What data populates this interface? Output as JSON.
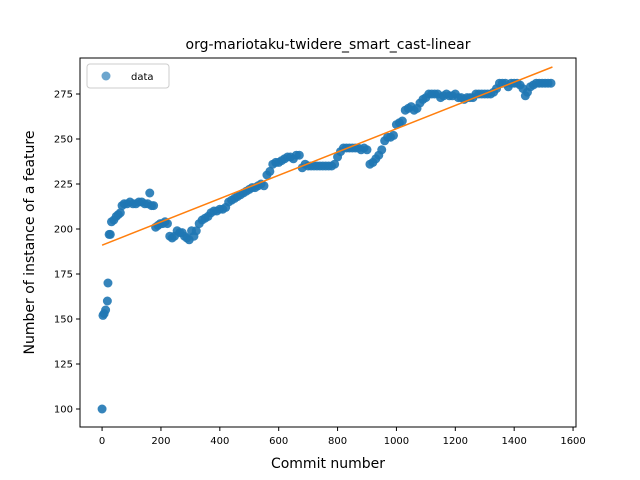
{
  "chart_data": {
    "type": "scatter",
    "title": "org-mariotaku-twidere_smart_cast-linear",
    "xlabel": "Commit number",
    "ylabel": "Number of instance of a feature",
    "xlim": [
      -75,
      1610
    ],
    "ylim": [
      90,
      295
    ],
    "xticks": [
      0,
      200,
      400,
      600,
      800,
      1000,
      1200,
      1400,
      1600
    ],
    "yticks": [
      100,
      125,
      150,
      175,
      200,
      225,
      250,
      275
    ],
    "legend": {
      "position": "top-left",
      "entries": [
        "data"
      ]
    },
    "colors": {
      "scatter": "#1f77b4",
      "fit": "#ff7f0e"
    },
    "series": [
      {
        "name": "data",
        "points": [
          [
            0,
            100
          ],
          [
            3,
            152
          ],
          [
            7,
            153
          ],
          [
            12,
            155
          ],
          [
            18,
            160
          ],
          [
            20,
            170
          ],
          [
            24,
            197
          ],
          [
            28,
            197
          ],
          [
            32,
            204
          ],
          [
            40,
            205
          ],
          [
            48,
            207
          ],
          [
            55,
            208
          ],
          [
            62,
            209
          ],
          [
            68,
            213
          ],
          [
            75,
            214
          ],
          [
            85,
            214
          ],
          [
            95,
            215
          ],
          [
            105,
            214
          ],
          [
            115,
            214
          ],
          [
            125,
            215
          ],
          [
            135,
            215
          ],
          [
            145,
            214
          ],
          [
            155,
            214
          ],
          [
            162,
            220
          ],
          [
            168,
            213
          ],
          [
            175,
            213
          ],
          [
            182,
            201
          ],
          [
            190,
            202
          ],
          [
            198,
            203
          ],
          [
            206,
            203
          ],
          [
            214,
            204
          ],
          [
            222,
            203
          ],
          [
            230,
            196
          ],
          [
            238,
            195
          ],
          [
            246,
            196
          ],
          [
            255,
            199
          ],
          [
            264,
            198
          ],
          [
            272,
            198
          ],
          [
            280,
            196
          ],
          [
            288,
            195
          ],
          [
            296,
            194
          ],
          [
            304,
            199
          ],
          [
            312,
            196
          ],
          [
            320,
            199
          ],
          [
            330,
            203
          ],
          [
            340,
            205
          ],
          [
            350,
            206
          ],
          [
            360,
            207
          ],
          [
            370,
            209
          ],
          [
            380,
            210
          ],
          [
            390,
            210
          ],
          [
            400,
            211
          ],
          [
            410,
            211
          ],
          [
            420,
            212
          ],
          [
            430,
            215
          ],
          [
            440,
            216
          ],
          [
            450,
            217
          ],
          [
            460,
            218
          ],
          [
            470,
            219
          ],
          [
            480,
            220
          ],
          [
            490,
            221
          ],
          [
            500,
            222
          ],
          [
            510,
            223
          ],
          [
            520,
            223
          ],
          [
            530,
            224
          ],
          [
            540,
            225
          ],
          [
            550,
            224
          ],
          [
            560,
            230
          ],
          [
            570,
            232
          ],
          [
            580,
            236
          ],
          [
            590,
            237
          ],
          [
            600,
            237
          ],
          [
            610,
            238
          ],
          [
            620,
            239
          ],
          [
            630,
            240
          ],
          [
            640,
            240
          ],
          [
            650,
            239
          ],
          [
            660,
            241
          ],
          [
            670,
            241
          ],
          [
            680,
            234
          ],
          [
            690,
            236
          ],
          [
            700,
            235
          ],
          [
            710,
            235
          ],
          [
            720,
            235
          ],
          [
            730,
            235
          ],
          [
            740,
            235
          ],
          [
            750,
            235
          ],
          [
            760,
            235
          ],
          [
            770,
            235
          ],
          [
            780,
            235
          ],
          [
            790,
            236
          ],
          [
            800,
            240
          ],
          [
            810,
            243
          ],
          [
            820,
            245
          ],
          [
            830,
            245
          ],
          [
            840,
            245
          ],
          [
            850,
            245
          ],
          [
            860,
            245
          ],
          [
            870,
            245
          ],
          [
            880,
            244
          ],
          [
            890,
            245
          ],
          [
            900,
            244
          ],
          [
            910,
            236
          ],
          [
            920,
            237
          ],
          [
            930,
            239
          ],
          [
            940,
            241
          ],
          [
            950,
            244
          ],
          [
            960,
            249
          ],
          [
            970,
            251
          ],
          [
            980,
            251
          ],
          [
            990,
            252
          ],
          [
            1000,
            258
          ],
          [
            1010,
            259
          ],
          [
            1020,
            260
          ],
          [
            1030,
            266
          ],
          [
            1040,
            267
          ],
          [
            1050,
            268
          ],
          [
            1060,
            266
          ],
          [
            1070,
            267
          ],
          [
            1080,
            270
          ],
          [
            1090,
            272
          ],
          [
            1100,
            273
          ],
          [
            1110,
            275
          ],
          [
            1120,
            275
          ],
          [
            1130,
            275
          ],
          [
            1140,
            275
          ],
          [
            1150,
            273
          ],
          [
            1160,
            274
          ],
          [
            1170,
            275
          ],
          [
            1180,
            274
          ],
          [
            1190,
            274
          ],
          [
            1200,
            275
          ],
          [
            1210,
            273
          ],
          [
            1220,
            273
          ],
          [
            1230,
            272
          ],
          [
            1240,
            273
          ],
          [
            1250,
            273
          ],
          [
            1260,
            273
          ],
          [
            1270,
            275
          ],
          [
            1280,
            275
          ],
          [
            1290,
            275
          ],
          [
            1300,
            275
          ],
          [
            1310,
            275
          ],
          [
            1320,
            275
          ],
          [
            1330,
            276
          ],
          [
            1340,
            278
          ],
          [
            1350,
            281
          ],
          [
            1360,
            281
          ],
          [
            1370,
            281
          ],
          [
            1380,
            279
          ],
          [
            1390,
            281
          ],
          [
            1400,
            281
          ],
          [
            1410,
            281
          ],
          [
            1420,
            280
          ],
          [
            1430,
            278
          ],
          [
            1438,
            274
          ],
          [
            1445,
            276
          ],
          [
            1455,
            279
          ],
          [
            1465,
            280
          ],
          [
            1475,
            281
          ],
          [
            1485,
            281
          ],
          [
            1495,
            281
          ],
          [
            1505,
            281
          ],
          [
            1515,
            281
          ],
          [
            1525,
            281
          ]
        ]
      },
      {
        "name": "",
        "type": "line",
        "points": [
          [
            0,
            191
          ],
          [
            1530,
            290
          ]
        ]
      }
    ]
  }
}
